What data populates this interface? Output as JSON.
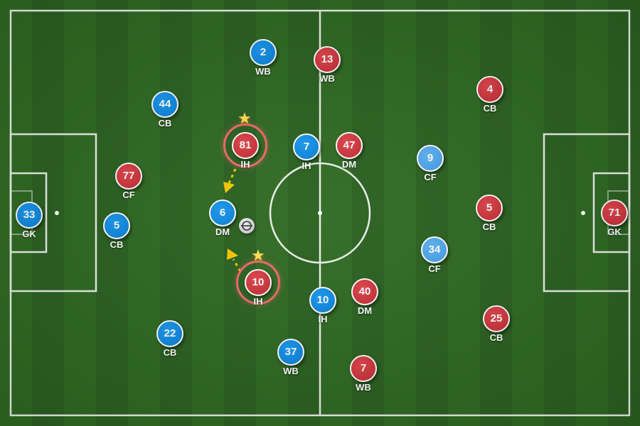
{
  "colors": {
    "home": "#0a84e0",
    "home_light": "#4aa6ec",
    "away": "#d0363c",
    "highlight": "#f0686c",
    "pass_arrow": "#f5c800",
    "lines": "#ffffff"
  },
  "icons": {
    "ball": "soccer-ball-icon",
    "star": "star-icon",
    "arrow": "pass-arrow-icon"
  },
  "players": [
    {
      "team": "home",
      "number": "33",
      "role": "GK"
    },
    {
      "team": "home",
      "number": "5",
      "role": "CB"
    },
    {
      "team": "home",
      "number": "44",
      "role": "CB"
    },
    {
      "team": "home",
      "number": "22",
      "role": "CB"
    },
    {
      "team": "home",
      "number": "2",
      "role": "WB"
    },
    {
      "team": "home",
      "number": "37",
      "role": "WB"
    },
    {
      "team": "home",
      "number": "6",
      "role": "DM"
    },
    {
      "team": "home",
      "number": "7",
      "role": "IH"
    },
    {
      "team": "home",
      "number": "10",
      "role": "IH"
    },
    {
      "team": "home_light",
      "number": "9",
      "role": "CF"
    },
    {
      "team": "home_light",
      "number": "34",
      "role": "CF"
    },
    {
      "team": "away",
      "number": "71",
      "role": "GK"
    },
    {
      "team": "away",
      "number": "5",
      "role": "CB"
    },
    {
      "team": "away",
      "number": "4",
      "role": "CB"
    },
    {
      "team": "away",
      "number": "25",
      "role": "CB"
    },
    {
      "team": "away",
      "number": "13",
      "role": "WB"
    },
    {
      "team": "away",
      "number": "7",
      "role": "WB"
    },
    {
      "team": "away",
      "number": "47",
      "role": "DM"
    },
    {
      "team": "away",
      "number": "40",
      "role": "DM"
    },
    {
      "team": "away",
      "number": "81",
      "role": "IH",
      "highlighted": true,
      "starred": true
    },
    {
      "team": "away",
      "number": "10",
      "role": "IH",
      "highlighted": true,
      "starred": true
    },
    {
      "team": "away",
      "number": "77",
      "role": "CF"
    }
  ]
}
